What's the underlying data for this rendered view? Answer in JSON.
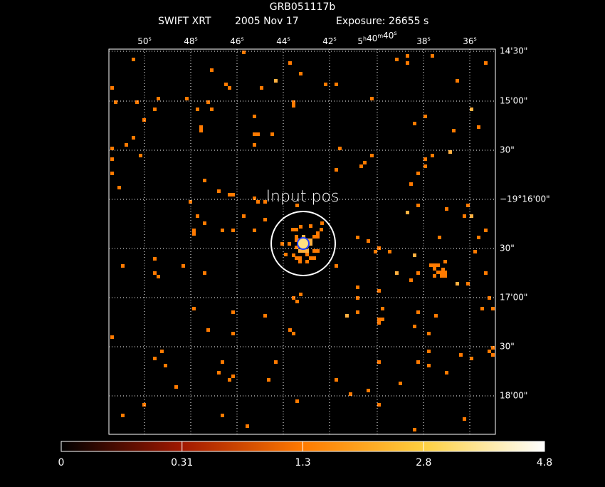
{
  "header": {
    "title": "GRB051117b",
    "instrument": "SWIFT XRT",
    "date": "2005 Nov 17",
    "exposure": "Exposure: 26655 s"
  },
  "axes": {
    "top": [
      [
        [
          "50",
          "s"
        ]
      ],
      [
        [
          "48",
          "s"
        ]
      ],
      [
        [
          "46",
          "s"
        ]
      ],
      [
        [
          "44",
          "s"
        ]
      ],
      [
        [
          "42",
          "s"
        ]
      ],
      [
        [
          "5",
          "h"
        ],
        [
          "40",
          "m"
        ],
        [
          "40",
          "s"
        ]
      ],
      [
        [
          "38",
          "s"
        ]
      ],
      [
        [
          "36",
          "s"
        ]
      ]
    ],
    "right": [
      "14'30\"",
      "15'00\"",
      "30\"",
      "−19°16'00\"",
      "30\"",
      "17'00\"",
      "30\"",
      "18'00\""
    ]
  },
  "marker": {
    "label": "Input pos"
  },
  "colorbar": {
    "ticks": [
      "0",
      "0.31",
      "1.3",
      "2.8",
      "4.8"
    ]
  }
}
